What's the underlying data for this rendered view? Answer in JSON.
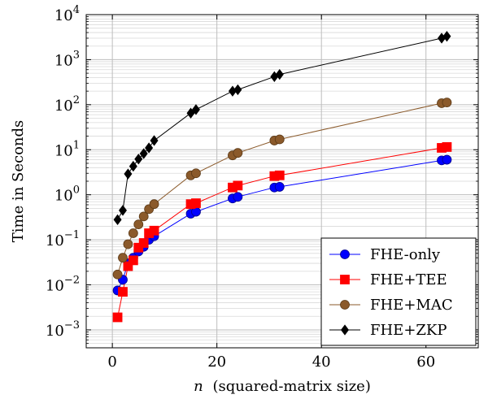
{
  "chart_data": {
    "type": "line",
    "xlabel_var": "n",
    "xlabel_rest": "(squared-matrix size)",
    "ylabel": "Time in Seconds",
    "xlim": [
      -5,
      70
    ],
    "ylim": [
      0.0004,
      10000
    ],
    "yscale": "log",
    "grid": true,
    "legend_position": "bottom-right",
    "x_ticks": [
      {
        "value": 0,
        "label": "0"
      },
      {
        "value": 20,
        "label": "20"
      },
      {
        "value": 40,
        "label": "40"
      },
      {
        "value": 60,
        "label": "60"
      }
    ],
    "y_ticks": [
      {
        "value": 0.001,
        "base": "10",
        "exp": "−3"
      },
      {
        "value": 0.01,
        "base": "10",
        "exp": "−2"
      },
      {
        "value": 0.1,
        "base": "10",
        "exp": "−1"
      },
      {
        "value": 1,
        "base": "10",
        "exp": "0"
      },
      {
        "value": 10,
        "base": "10",
        "exp": "1"
      },
      {
        "value": 100,
        "base": "10",
        "exp": "2"
      },
      {
        "value": 1000,
        "base": "10",
        "exp": "3"
      },
      {
        "value": 10000,
        "base": "10",
        "exp": "4"
      }
    ],
    "series": [
      {
        "name": "FHE-only",
        "color": "#0000ff",
        "marker": "circle",
        "x": [
          1,
          2,
          3,
          4,
          5,
          6,
          7,
          8,
          15,
          16,
          23,
          24,
          31,
          32,
          63,
          64
        ],
        "y": [
          0.0075,
          0.013,
          0.03,
          0.04,
          0.055,
          0.07,
          0.1,
          0.12,
          0.38,
          0.42,
          0.83,
          0.9,
          1.45,
          1.5,
          5.8,
          6.0
        ]
      },
      {
        "name": "FHE+TEE",
        "color": "#ff0000",
        "marker": "square",
        "x": [
          1,
          2,
          3,
          4,
          5,
          6,
          7,
          8,
          15,
          16,
          23,
          24,
          31,
          32,
          63,
          64
        ],
        "y": [
          0.0019,
          0.007,
          0.026,
          0.035,
          0.067,
          0.085,
          0.14,
          0.16,
          0.62,
          0.65,
          1.45,
          1.6,
          2.6,
          2.7,
          11,
          11.5
        ]
      },
      {
        "name": "FHE+MAC",
        "color": "#8b5a2b",
        "marker": "circle",
        "x": [
          1,
          2,
          3,
          4,
          5,
          6,
          7,
          8,
          15,
          16,
          23,
          24,
          31,
          32,
          63,
          64
        ],
        "y": [
          0.017,
          0.04,
          0.08,
          0.14,
          0.22,
          0.33,
          0.48,
          0.62,
          2.7,
          3.0,
          7.5,
          8.5,
          16,
          17,
          108,
          112
        ]
      },
      {
        "name": "FHE+ZKP",
        "color": "#000000",
        "marker": "diamond",
        "x": [
          1,
          2,
          3,
          4,
          5,
          6,
          7,
          8,
          15,
          16,
          23,
          24,
          31,
          32,
          63,
          64
        ],
        "y": [
          0.28,
          0.45,
          2.9,
          4.3,
          6.2,
          8.2,
          11,
          16,
          65,
          78,
          200,
          215,
          420,
          470,
          3000,
          3300
        ]
      }
    ]
  }
}
